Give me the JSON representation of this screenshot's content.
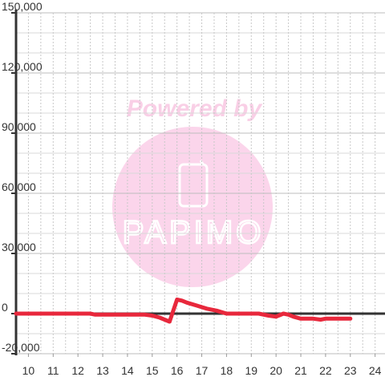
{
  "watermark": {
    "powered_by": "Powered by",
    "brand": "PAPIMO",
    "circle_color": "#fbd5eb",
    "text_color": "#f9cfe6"
  },
  "chart_data": {
    "type": "line",
    "title": "",
    "xlabel": "",
    "ylabel": "",
    "xlim": [
      9.5,
      24.4
    ],
    "ylim": [
      -20000,
      150000
    ],
    "x_ticks": [
      10,
      11,
      12,
      13,
      14,
      15,
      16,
      17,
      18,
      19,
      20,
      21,
      22,
      23,
      24
    ],
    "y_ticks": [
      -20000,
      0,
      30000,
      60000,
      90000,
      120000,
      150000
    ],
    "x_tick_labels": [
      "10",
      "11",
      "12",
      "13",
      "14",
      "15",
      "16",
      "17",
      "18",
      "19",
      "20",
      "21",
      "22",
      "23",
      "24"
    ],
    "y_tick_labels": [
      "-20,000",
      "0",
      "30,000",
      "60,000",
      "90,000",
      "120,000",
      "150,000"
    ],
    "grid": true,
    "legend": "none",
    "series": [
      {
        "color": "#e8283c",
        "x": [
          9.5,
          12.5,
          12.7,
          14.7,
          15.0,
          15.3,
          15.7,
          16.0,
          16.2,
          16.4,
          16.8,
          17.2,
          17.6,
          18.0,
          18.3,
          18.7,
          19.3,
          19.7,
          20.0,
          20.1,
          20.3,
          20.5,
          20.7,
          21.0,
          21.3,
          21.5,
          21.8,
          22.0,
          22.3,
          22.7,
          23.0
        ],
        "y": [
          0,
          0,
          -500,
          -500,
          -1000,
          -2000,
          -4000,
          7000,
          6500,
          5500,
          4000,
          2500,
          1500,
          0,
          0,
          0,
          0,
          -1000,
          -1500,
          -1000,
          0,
          -500,
          -1500,
          -2500,
          -2500,
          -2500,
          -3000,
          -2500,
          -2500,
          -2500,
          -2500
        ]
      }
    ]
  }
}
